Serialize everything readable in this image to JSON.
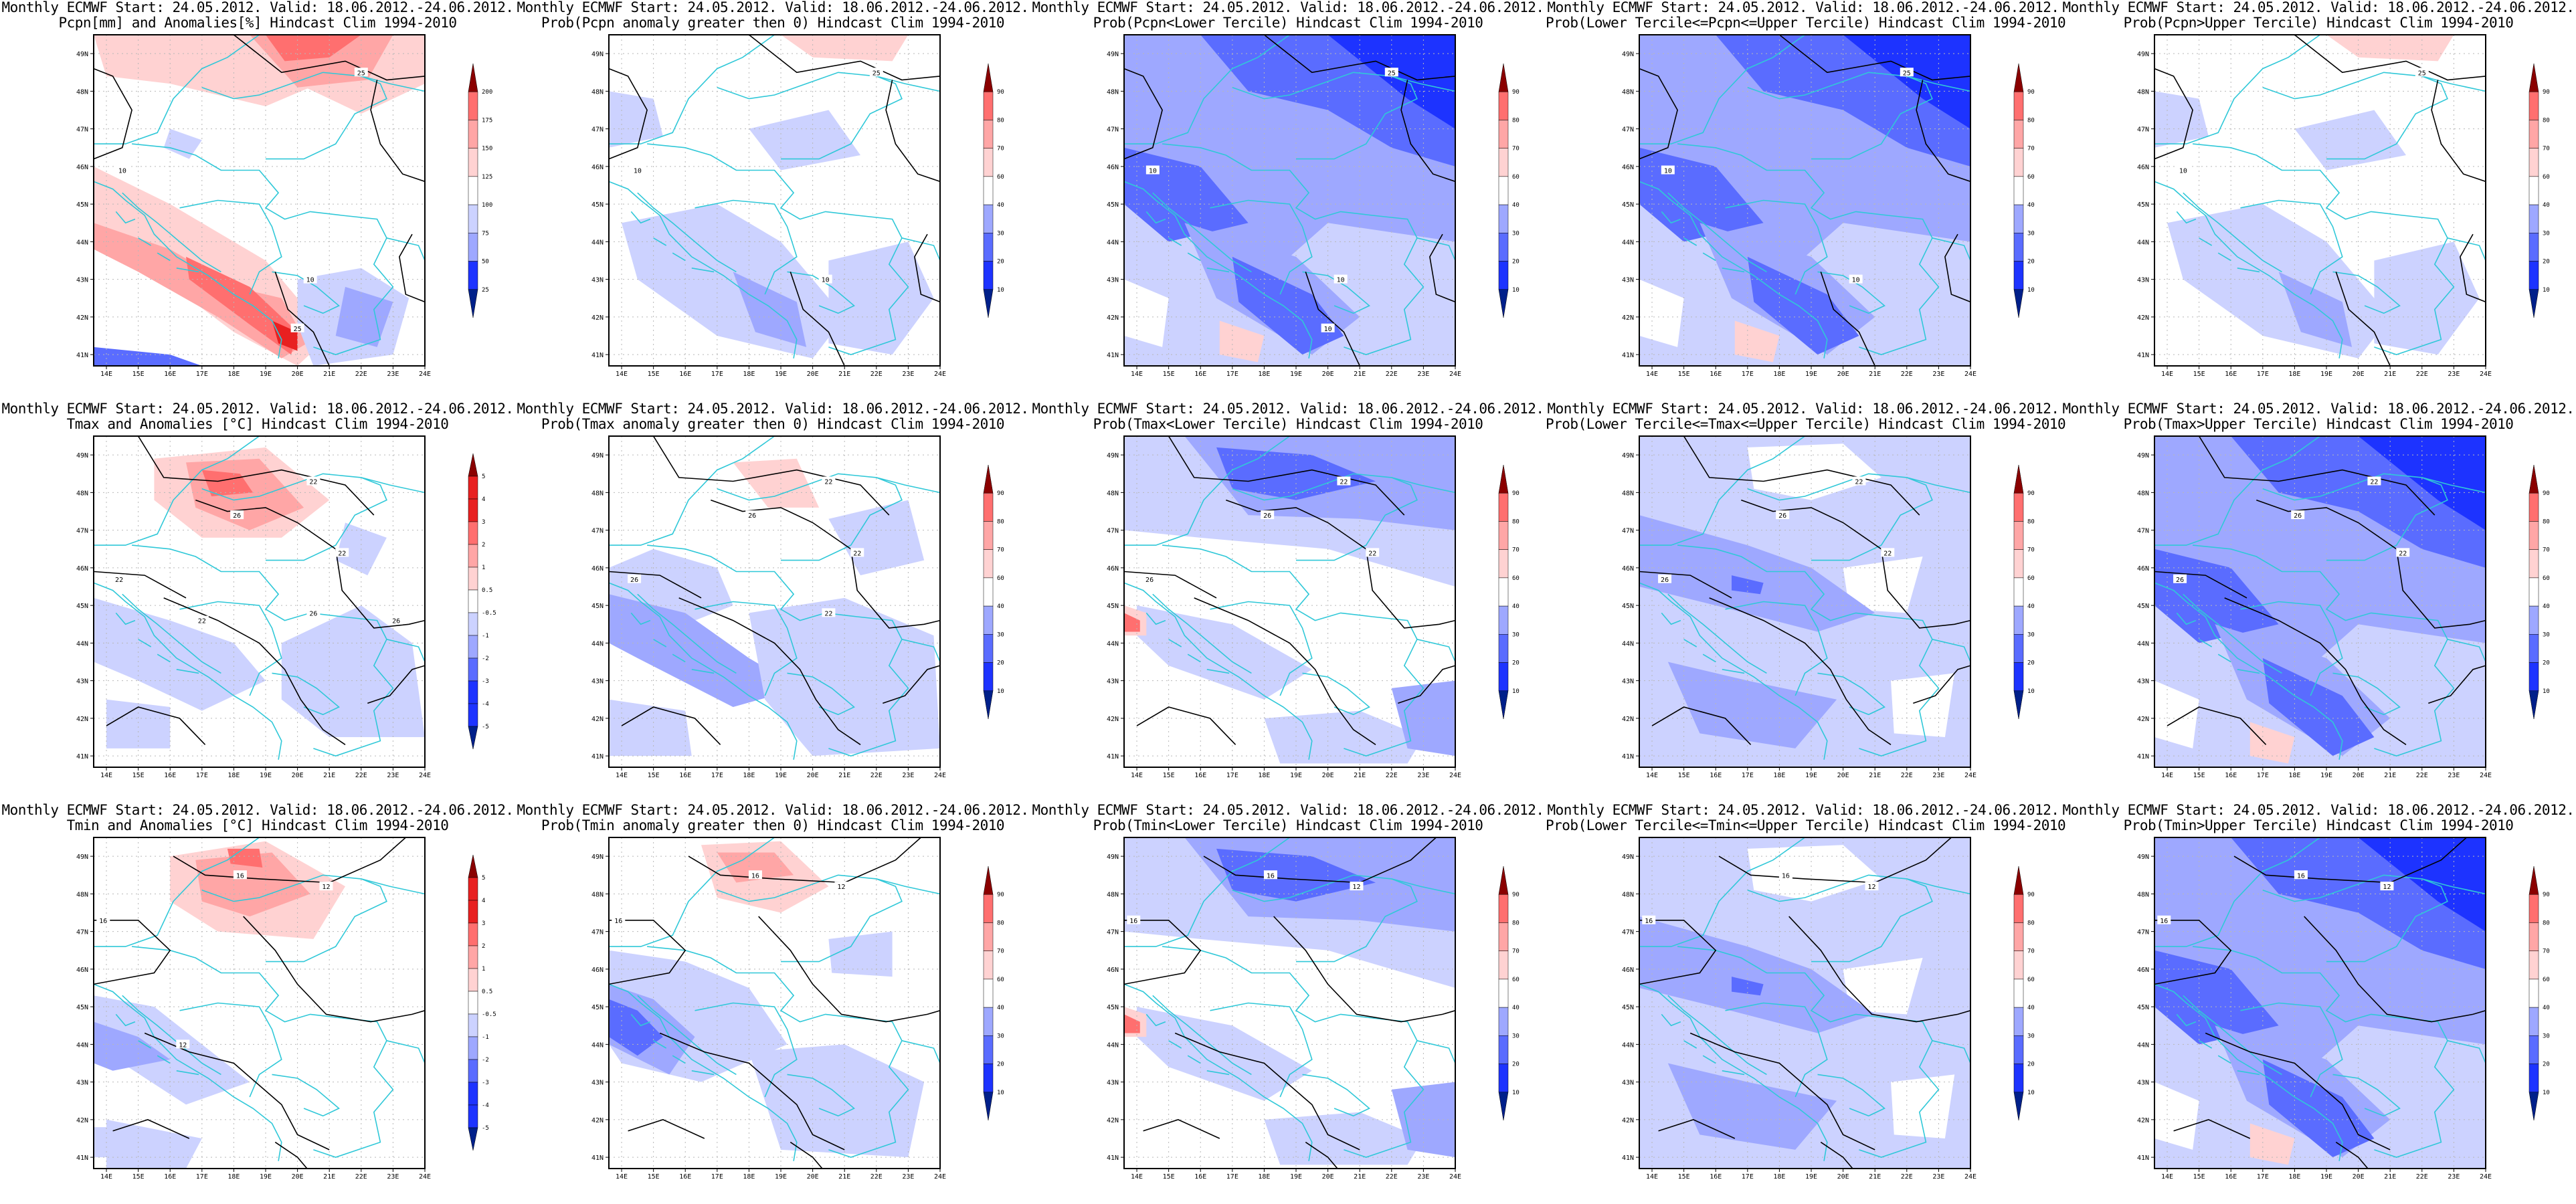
{
  "chart_data": {
    "type": "heatmap",
    "layout": {
      "rows": 3,
      "cols": 5
    },
    "x_ticks": [
      "14E",
      "15E",
      "16E",
      "17E",
      "18E",
      "19E",
      "20E",
      "21E",
      "22E",
      "23E",
      "24E"
    ],
    "y_ticks": [
      "41N",
      "42N",
      "43N",
      "44N",
      "45N",
      "46N",
      "47N",
      "48N",
      "49N"
    ],
    "xlim": [
      13.6,
      24.0
    ],
    "ylim": [
      40.7,
      49.5
    ],
    "colors": {
      "dark_blue": "#00208a",
      "blue": "#1d33ff",
      "mid_blue": "#5a6cff",
      "light_blue": "#9ea8ff",
      "pale_blue": "#ccd2ff",
      "white": "#ffffff",
      "pale_red": "#ffd2d2",
      "light_red": "#ffa6a6",
      "mid_red": "#ff6f6f",
      "red": "#e82020",
      "dark_red": "#8a0000",
      "border": "#30c8d8",
      "contour": "#000000"
    },
    "panels": [
      {
        "id": "pcpn-anom",
        "title1": "Monthly ECMWF Start: 24.05.2012. Valid: 18.06.2012.-24.06.2012.",
        "title2": "Pcpn[mm] and Anomalies[%] Hindcast Clim 1994-2010",
        "colorbar": [
          "25",
          "50",
          "75",
          "100",
          "125",
          "150",
          "175",
          "200"
        ],
        "diverging": true,
        "contour_labels": [
          "25",
          "10",
          "10",
          "25"
        ],
        "scheme": "pcpn"
      },
      {
        "id": "pcpn-prob-gt0",
        "title1": "Monthly ECMWF Start: 24.05.2012. Valid: 18.06.2012.-24.06.2012.",
        "title2": "Prob(Pcpn anomaly greater then 0) Hindcast Clim 1994-2010",
        "colorbar": [
          "10",
          "20",
          "30",
          "40",
          "60",
          "70",
          "80",
          "90"
        ],
        "diverging": false,
        "contour_labels": [
          "25",
          "10",
          "10"
        ],
        "scheme": "pcpn-weak"
      },
      {
        "id": "pcpn-prob-lower",
        "title1": "Monthly ECMWF Start: 24.05.2012. Valid: 18.06.2012.-24.06.2012.",
        "title2": "Prob(Pcpn<Lower Tercile) Hindcast Clim 1994-2010",
        "colorbar": [
          "10",
          "20",
          "30",
          "40",
          "60",
          "70",
          "80",
          "90"
        ],
        "diverging": false,
        "contour_labels": [
          "25",
          "10",
          "10",
          "10"
        ],
        "scheme": "blue-strong"
      },
      {
        "id": "pcpn-prob-middle",
        "title1": "Monthly ECMWF Start: 24.05.2012. Valid: 18.06.2012.-24.06.2012.",
        "title2": "Prob(Lower Tercile<=Pcpn<=Upper Tercile) Hindcast Clim 1994-2010",
        "colorbar": [
          "10",
          "20",
          "30",
          "40",
          "60",
          "70",
          "80",
          "90"
        ],
        "diverging": false,
        "contour_labels": [
          "25",
          "10",
          "10"
        ],
        "scheme": "blue-strong"
      },
      {
        "id": "pcpn-prob-upper",
        "title1": "Monthly ECMWF Start: 24.05.2012. Valid: 18.06.2012.-24.06.2012.",
        "title2": "Prob(Pcpn>Upper Tercile) Hindcast Clim 1994-2010",
        "colorbar": [
          "10",
          "20",
          "30",
          "40",
          "60",
          "70",
          "80",
          "90"
        ],
        "diverging": false,
        "contour_labels": [
          "25",
          "10"
        ],
        "scheme": "pcpn-weak"
      },
      {
        "id": "tmax-anom",
        "title1": "Monthly ECMWF Start: 24.05.2012. Valid: 18.06.2012.-24.06.2012.",
        "title2": "Tmax and Anomalies [°C] Hindcast Clim 1994-2010",
        "colorbar": [
          "-5",
          "-4",
          "-3",
          "-2",
          "-1",
          "-0.5",
          "0.5",
          "1",
          "2",
          "3",
          "4",
          "5"
        ],
        "diverging": true,
        "contour_labels": [
          "22",
          "26",
          "22",
          "22",
          "26",
          "26",
          "22"
        ],
        "scheme": "tmax"
      },
      {
        "id": "tmax-prob-gt0",
        "title1": "Monthly ECMWF Start: 24.05.2012. Valid: 18.06.2012.-24.06.2012.",
        "title2": "Prob(Tmax anomaly greater then 0) Hindcast Clim 1994-2010",
        "colorbar": [
          "10",
          "20",
          "30",
          "40",
          "60",
          "70",
          "80",
          "90"
        ],
        "diverging": false,
        "contour_labels": [
          "22",
          "26",
          "22",
          "26",
          "22"
        ],
        "scheme": "tmax-weak"
      },
      {
        "id": "tmax-prob-lower",
        "title1": "Monthly ECMWF Start: 24.05.2012. Valid: 18.06.2012.-24.06.2012.",
        "title2": "Prob(Tmax<Lower Tercile) Hindcast Clim 1994-2010",
        "colorbar": [
          "10",
          "20",
          "30",
          "40",
          "60",
          "70",
          "80",
          "90"
        ],
        "diverging": false,
        "contour_labels": [
          "22",
          "26",
          "22",
          "26"
        ],
        "scheme": "blue-top"
      },
      {
        "id": "tmax-prob-middle",
        "title1": "Monthly ECMWF Start: 24.05.2012. Valid: 18.06.2012.-24.06.2012.",
        "title2": "Prob(Lower Tercile<=Tmax<=Upper Tercile) Hindcast Clim 1994-2010",
        "colorbar": [
          "10",
          "20",
          "30",
          "40",
          "60",
          "70",
          "80",
          "90"
        ],
        "diverging": false,
        "contour_labels": [
          "22",
          "26",
          "22",
          "26"
        ],
        "scheme": "blue-mid"
      },
      {
        "id": "tmax-prob-upper",
        "title1": "Monthly ECMWF Start: 24.05.2012. Valid: 18.06.2012.-24.06.2012.",
        "title2": "Prob(Tmax>Upper Tercile) Hindcast Clim 1994-2010",
        "colorbar": [
          "10",
          "20",
          "30",
          "40",
          "60",
          "70",
          "80",
          "90"
        ],
        "diverging": false,
        "contour_labels": [
          "22",
          "26",
          "22",
          "26"
        ],
        "scheme": "blue-strong"
      },
      {
        "id": "tmin-anom",
        "title1": "Monthly ECMWF Start: 24.05.2012. Valid: 18.06.2012.-24.06.2012.",
        "title2": "Tmin and Anomalies [°C] Hindcast Clim 1994-2010",
        "colorbar": [
          "-5",
          "-4",
          "-3",
          "-2",
          "-1",
          "-0.5",
          "0.5",
          "1",
          "2",
          "3",
          "4",
          "5"
        ],
        "diverging": true,
        "contour_labels": [
          "16",
          "12",
          "16",
          "12"
        ],
        "scheme": "tmin"
      },
      {
        "id": "tmin-prob-gt0",
        "title1": "Monthly ECMWF Start: 24.05.2012. Valid: 18.06.2012.-24.06.2012.",
        "title2": "Prob(Tmin anomaly greater then 0) Hindcast Clim 1994-2010",
        "colorbar": [
          "10",
          "20",
          "30",
          "40",
          "60",
          "70",
          "80",
          "90"
        ],
        "diverging": false,
        "contour_labels": [
          "16",
          "12",
          "16"
        ],
        "scheme": "tmin-weak"
      },
      {
        "id": "tmin-prob-lower",
        "title1": "Monthly ECMWF Start: 24.05.2012. Valid: 18.06.2012.-24.06.2012.",
        "title2": "Prob(Tmin<Lower Tercile) Hindcast Clim 1994-2010",
        "colorbar": [
          "10",
          "20",
          "30",
          "40",
          "60",
          "70",
          "80",
          "90"
        ],
        "diverging": false,
        "contour_labels": [
          "16",
          "12",
          "16"
        ],
        "scheme": "blue-top"
      },
      {
        "id": "tmin-prob-middle",
        "title1": "Monthly ECMWF Start: 24.05.2012. Valid: 18.06.2012.-24.06.2012.",
        "title2": "Prob(Lower Tercile<=Tmin<=Upper Tercile) Hindcast Clim 1994-2010",
        "colorbar": [
          "10",
          "20",
          "30",
          "40",
          "60",
          "70",
          "80",
          "90"
        ],
        "diverging": false,
        "contour_labels": [
          "16",
          "12",
          "16"
        ],
        "scheme": "blue-mid"
      },
      {
        "id": "tmin-prob-upper",
        "title1": "Monthly ECMWF Start: 24.05.2012. Valid: 18.06.2012.-24.06.2012.",
        "title2": "Prob(Tmin>Upper Tercile) Hindcast Clim 1994-2010",
        "colorbar": [
          "10",
          "20",
          "30",
          "40",
          "60",
          "70",
          "80",
          "90"
        ],
        "diverging": false,
        "contour_labels": [
          "16",
          "12",
          "16"
        ],
        "scheme": "blue-strong"
      }
    ]
  }
}
